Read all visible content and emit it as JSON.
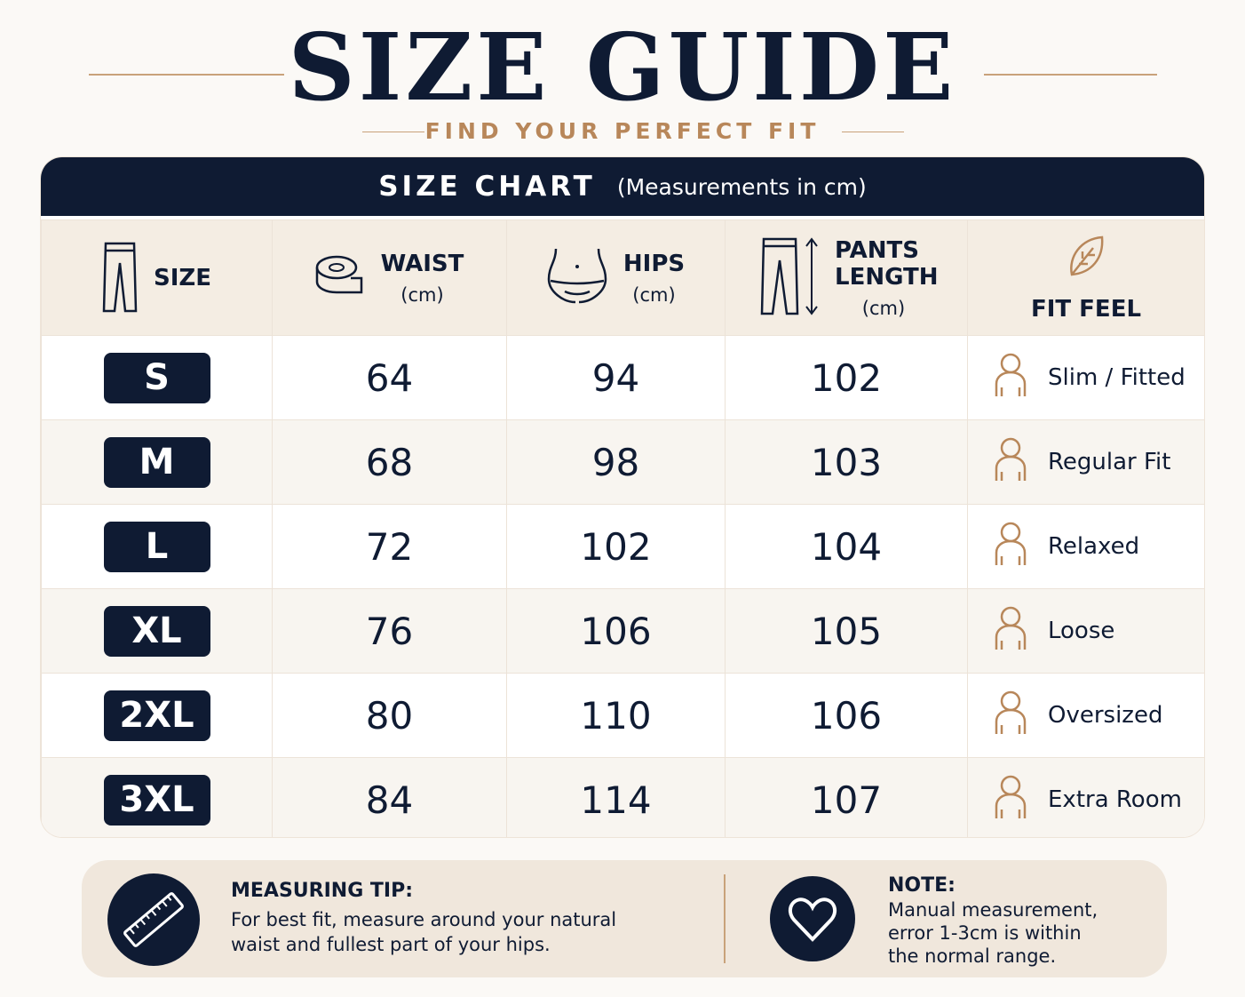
{
  "header": {
    "title": "SIZE GUIDE",
    "subtitle": "FIND YOUR PERFECT FIT"
  },
  "table": {
    "title": "SIZE CHART",
    "note": "(Measurements in cm)",
    "columns": [
      {
        "label": "SIZE"
      },
      {
        "label": "WAIST",
        "unit": "(cm)"
      },
      {
        "label": "HIPS",
        "unit": "(cm)"
      },
      {
        "label": "PANTS LENGTH",
        "unit": "(cm)"
      },
      {
        "label": "FIT FEEL"
      }
    ],
    "rows": [
      [
        "S",
        64,
        94,
        102,
        "Slim / Fitted"
      ],
      [
        "M",
        68,
        98,
        103,
        "Regular Fit"
      ],
      [
        "L",
        72,
        102,
        104,
        "Relaxed"
      ],
      [
        "XL",
        76,
        106,
        105,
        "Loose"
      ],
      [
        "2XL",
        80,
        110,
        106,
        "Oversized"
      ],
      [
        "3XL",
        84,
        114,
        107,
        "Extra Room"
      ]
    ]
  },
  "footer": {
    "tip": {
      "title": "MEASURING TIP:",
      "text": "For best fit, measure around your natural waist and fullest part of your hips."
    },
    "note": {
      "title": "NOTE:",
      "text": "Manual measurement, error 1-3cm is within the normal range."
    }
  }
}
